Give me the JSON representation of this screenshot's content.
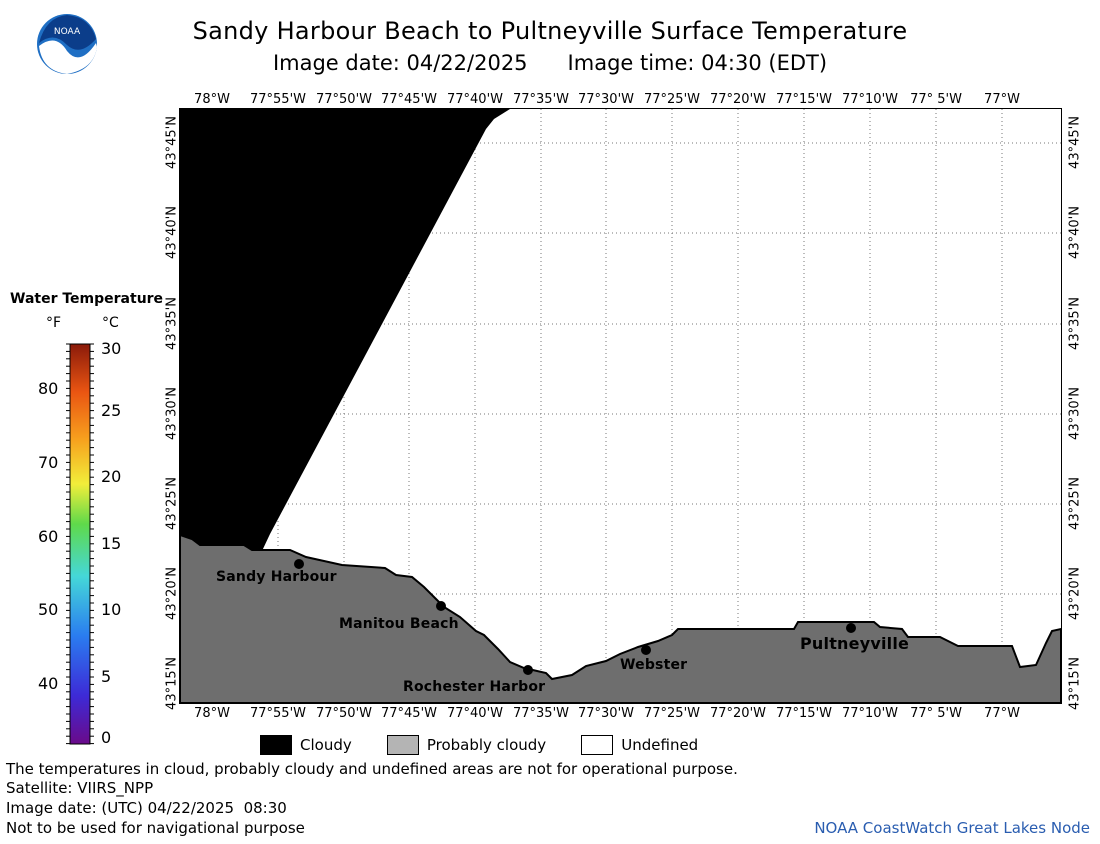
{
  "header": {
    "title": "Sandy Harbour Beach to Pultneyville Surface Temperature",
    "image_date": "Image date: 04/22/2025",
    "image_time": "Image time: 04:30 (EDT)"
  },
  "map": {
    "lon_labels": [
      "78°W",
      "77°55'W",
      "77°50'W",
      "77°45'W",
      "77°40'W",
      "77°35'W",
      "77°30'W",
      "77°25'W",
      "77°20'W",
      "77°15'W",
      "77°10'W",
      "77° 5'W",
      "77°W"
    ],
    "lat_labels": [
      "43°45'N",
      "43°40'N",
      "43°35'N",
      "43°30'N",
      "43°25'N",
      "43°20'N",
      "43°15'N"
    ],
    "places": [
      {
        "name": "Sandy Harbour"
      },
      {
        "name": "Manitou Beach"
      },
      {
        "name": "Rochester Harbor"
      },
      {
        "name": "Webster"
      },
      {
        "name": "Pultneyville"
      }
    ],
    "colors": {
      "cloud": "#000000",
      "land": "#6e6e6e",
      "undefined": "#ffffff",
      "grid": "#888888"
    }
  },
  "legend": {
    "title": "Water Temperature",
    "unit_f": "°F",
    "unit_c": "°C",
    "f_labels": [
      "80",
      "70",
      "60",
      "50",
      "40"
    ],
    "c_labels": [
      "30",
      "25",
      "20",
      "15",
      "10",
      "5",
      "0"
    ]
  },
  "key": {
    "cloudy": "Cloudy",
    "probably_cloudy": "Probably cloudy",
    "undefined": "Undefined",
    "colors": {
      "cloudy": "#000000",
      "probably_cloudy": "#b4b4b4",
      "undefined": "#ffffff"
    }
  },
  "notes": {
    "disclaimer": "The temperatures in cloud, probably cloudy and undefined areas are not for operational purpose.",
    "satellite": "Satellite: VIIRS_NPP",
    "utc_date": "Image date: (UTC) 04/22/2025  08:30",
    "nav": "Not to be used for navigational purpose",
    "credit": "NOAA CoastWatch Great Lakes Node"
  },
  "logo": {
    "text": "NOAA"
  }
}
